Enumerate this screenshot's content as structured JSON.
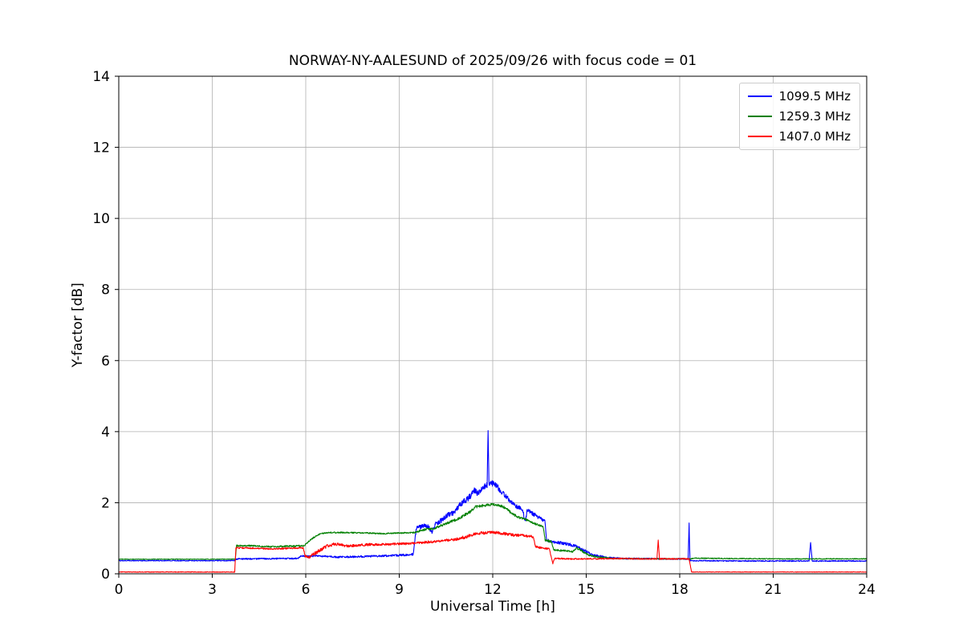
{
  "chart_data": {
    "type": "line",
    "title": "NORWAY-NY-AALESUND of 2025/09/26 with focus code = 01",
    "xlabel": "Universal Time [h]",
    "ylabel": "Y-factor [dB]",
    "xlim": [
      0,
      24
    ],
    "ylim": [
      0,
      14
    ],
    "xticks": [
      0,
      3,
      6,
      9,
      12,
      15,
      18,
      21,
      24
    ],
    "yticks": [
      0,
      2,
      4,
      6,
      8,
      10,
      12,
      14
    ],
    "grid": true,
    "grid_color": "#b0b0b0",
    "axes_color": "#000000",
    "legend_position": "upper right",
    "series": [
      {
        "name": "1099.5 MHz",
        "color": "#0000ff",
        "points": [
          [
            0,
            0.37,
            0.012
          ],
          [
            3.7,
            0.37,
            0.012
          ],
          [
            3.8,
            0.42,
            0.02
          ],
          [
            5.75,
            0.43,
            0.02
          ],
          [
            5.85,
            0.5,
            0.02
          ],
          [
            6.4,
            0.5,
            0.025
          ],
          [
            7.0,
            0.47,
            0.025
          ],
          [
            7.6,
            0.48,
            0.025
          ],
          [
            8.4,
            0.5,
            0.025
          ],
          [
            9.0,
            0.52,
            0.03
          ],
          [
            9.45,
            0.55,
            0.03
          ],
          [
            9.55,
            1.28,
            0.06
          ],
          [
            9.75,
            1.35,
            0.06
          ],
          [
            9.95,
            1.32,
            0.06
          ],
          [
            10.05,
            1.15,
            0.05
          ],
          [
            10.15,
            1.4,
            0.06
          ],
          [
            10.35,
            1.5,
            0.07
          ],
          [
            10.55,
            1.65,
            0.07
          ],
          [
            10.75,
            1.72,
            0.07
          ],
          [
            10.95,
            1.95,
            0.08
          ],
          [
            11.1,
            2.05,
            0.08
          ],
          [
            11.25,
            2.15,
            0.09
          ],
          [
            11.4,
            2.35,
            0.09
          ],
          [
            11.55,
            2.25,
            0.09
          ],
          [
            11.7,
            2.45,
            0.09
          ],
          [
            11.82,
            2.5,
            0.08
          ],
          [
            11.85,
            4.03,
            0.0
          ],
          [
            11.88,
            2.5,
            0.08
          ],
          [
            12.0,
            2.55,
            0.08
          ],
          [
            12.15,
            2.45,
            0.08
          ],
          [
            12.3,
            2.3,
            0.08
          ],
          [
            12.45,
            2.15,
            0.07
          ],
          [
            12.6,
            2.0,
            0.07
          ],
          [
            12.75,
            1.9,
            0.06
          ],
          [
            12.95,
            1.82,
            0.06
          ],
          [
            13.05,
            1.45,
            0.05
          ],
          [
            13.1,
            1.78,
            0.06
          ],
          [
            13.25,
            1.72,
            0.06
          ],
          [
            13.4,
            1.62,
            0.06
          ],
          [
            13.55,
            1.55,
            0.05
          ],
          [
            13.68,
            1.48,
            0.05
          ],
          [
            13.73,
            0.95,
            0.04
          ],
          [
            13.9,
            0.9,
            0.04
          ],
          [
            14.2,
            0.87,
            0.04
          ],
          [
            14.5,
            0.82,
            0.04
          ],
          [
            14.75,
            0.75,
            0.04
          ],
          [
            14.95,
            0.65,
            0.04
          ],
          [
            15.15,
            0.55,
            0.035
          ],
          [
            15.4,
            0.5,
            0.03
          ],
          [
            15.7,
            0.45,
            0.025
          ],
          [
            16.2,
            0.43,
            0.02
          ],
          [
            17.5,
            0.42,
            0.02
          ],
          [
            18.27,
            0.42,
            0.02
          ],
          [
            18.3,
            1.43,
            0.0
          ],
          [
            18.33,
            0.37,
            0.015
          ],
          [
            20.0,
            0.36,
            0.015
          ],
          [
            22.15,
            0.36,
            0.015
          ],
          [
            22.2,
            0.88,
            0.0
          ],
          [
            22.25,
            0.36,
            0.015
          ],
          [
            24,
            0.36,
            0.015
          ]
        ]
      },
      {
        "name": "1259.3 MHz",
        "color": "#008000",
        "points": [
          [
            0,
            0.41,
            0.008
          ],
          [
            3.74,
            0.41,
            0.008
          ],
          [
            3.78,
            0.79,
            0.022
          ],
          [
            4.3,
            0.79,
            0.022
          ],
          [
            4.9,
            0.76,
            0.022
          ],
          [
            5.5,
            0.78,
            0.022
          ],
          [
            5.95,
            0.79,
            0.022
          ],
          [
            6.05,
            0.88,
            0.025
          ],
          [
            6.25,
            1.02,
            0.025
          ],
          [
            6.45,
            1.12,
            0.02
          ],
          [
            6.7,
            1.16,
            0.018
          ],
          [
            7.3,
            1.16,
            0.018
          ],
          [
            7.9,
            1.15,
            0.018
          ],
          [
            8.5,
            1.13,
            0.018
          ],
          [
            9.1,
            1.15,
            0.018
          ],
          [
            9.5,
            1.16,
            0.02
          ],
          [
            9.7,
            1.22,
            0.03
          ],
          [
            9.9,
            1.26,
            0.03
          ],
          [
            10.1,
            1.27,
            0.03
          ],
          [
            10.35,
            1.36,
            0.035
          ],
          [
            10.6,
            1.45,
            0.035
          ],
          [
            10.85,
            1.53,
            0.035
          ],
          [
            11.05,
            1.63,
            0.04
          ],
          [
            11.25,
            1.73,
            0.04
          ],
          [
            11.45,
            1.88,
            0.045
          ],
          [
            11.6,
            1.9,
            0.04
          ],
          [
            11.8,
            1.93,
            0.035
          ],
          [
            12.0,
            1.95,
            0.035
          ],
          [
            12.2,
            1.93,
            0.035
          ],
          [
            12.35,
            1.88,
            0.035
          ],
          [
            12.5,
            1.78,
            0.035
          ],
          [
            12.65,
            1.68,
            0.035
          ],
          [
            12.85,
            1.58,
            0.03
          ],
          [
            13.05,
            1.53,
            0.03
          ],
          [
            13.25,
            1.44,
            0.03
          ],
          [
            13.45,
            1.38,
            0.03
          ],
          [
            13.62,
            1.32,
            0.025
          ],
          [
            13.68,
            0.95,
            0.03
          ],
          [
            13.88,
            0.9,
            0.03
          ],
          [
            13.96,
            0.67,
            0.025
          ],
          [
            14.3,
            0.65,
            0.025
          ],
          [
            14.55,
            0.62,
            0.025
          ],
          [
            14.7,
            0.73,
            0.03
          ],
          [
            14.9,
            0.62,
            0.03
          ],
          [
            15.1,
            0.52,
            0.025
          ],
          [
            15.45,
            0.46,
            0.02
          ],
          [
            15.9,
            0.43,
            0.015
          ],
          [
            17.0,
            0.42,
            0.012
          ],
          [
            18.35,
            0.42,
            0.012
          ],
          [
            18.45,
            0.44,
            0.015
          ],
          [
            19.5,
            0.43,
            0.012
          ],
          [
            21.0,
            0.42,
            0.012
          ],
          [
            22.5,
            0.42,
            0.012
          ],
          [
            24,
            0.42,
            0.012
          ]
        ]
      },
      {
        "name": "1407.0 MHz",
        "color": "#ff0000",
        "points": [
          [
            0,
            0.05,
            0.008
          ],
          [
            3.72,
            0.05,
            0.008
          ],
          [
            3.76,
            0.73,
            0.02
          ],
          [
            4.3,
            0.72,
            0.02
          ],
          [
            4.9,
            0.7,
            0.02
          ],
          [
            5.5,
            0.72,
            0.02
          ],
          [
            5.92,
            0.73,
            0.02
          ],
          [
            5.98,
            0.5,
            0.03
          ],
          [
            6.1,
            0.46,
            0.035
          ],
          [
            6.3,
            0.58,
            0.05
          ],
          [
            6.5,
            0.68,
            0.05
          ],
          [
            6.7,
            0.78,
            0.05
          ],
          [
            6.9,
            0.84,
            0.045
          ],
          [
            7.1,
            0.82,
            0.04
          ],
          [
            7.3,
            0.78,
            0.04
          ],
          [
            7.6,
            0.8,
            0.035
          ],
          [
            8.0,
            0.82,
            0.035
          ],
          [
            8.5,
            0.83,
            0.03
          ],
          [
            9.0,
            0.84,
            0.03
          ],
          [
            9.5,
            0.86,
            0.03
          ],
          [
            10.0,
            0.9,
            0.035
          ],
          [
            10.4,
            0.93,
            0.035
          ],
          [
            10.8,
            0.97,
            0.04
          ],
          [
            11.1,
            1.03,
            0.045
          ],
          [
            11.3,
            1.08,
            0.045
          ],
          [
            11.5,
            1.14,
            0.04
          ],
          [
            11.75,
            1.15,
            0.04
          ],
          [
            12.0,
            1.17,
            0.04
          ],
          [
            12.2,
            1.15,
            0.04
          ],
          [
            12.45,
            1.12,
            0.04
          ],
          [
            12.7,
            1.08,
            0.04
          ],
          [
            12.95,
            1.08,
            0.04
          ],
          [
            13.15,
            1.06,
            0.04
          ],
          [
            13.3,
            1.04,
            0.035
          ],
          [
            13.38,
            0.76,
            0.03
          ],
          [
            13.6,
            0.72,
            0.025
          ],
          [
            13.82,
            0.7,
            0.025
          ],
          [
            13.88,
            0.45,
            0.02
          ],
          [
            13.93,
            0.29,
            0.02
          ],
          [
            13.98,
            0.43,
            0.02
          ],
          [
            14.5,
            0.42,
            0.018
          ],
          [
            15.2,
            0.42,
            0.018
          ],
          [
            16.0,
            0.43,
            0.018
          ],
          [
            16.8,
            0.42,
            0.018
          ],
          [
            17.27,
            0.42,
            0.018
          ],
          [
            17.31,
            0.95,
            0.0
          ],
          [
            17.35,
            0.42,
            0.018
          ],
          [
            18.3,
            0.42,
            0.018
          ],
          [
            18.38,
            0.05,
            0.006
          ],
          [
            19.5,
            0.05,
            0.006
          ],
          [
            21.0,
            0.05,
            0.006
          ],
          [
            22.5,
            0.05,
            0.006
          ],
          [
            24,
            0.05,
            0.006
          ]
        ]
      }
    ]
  }
}
